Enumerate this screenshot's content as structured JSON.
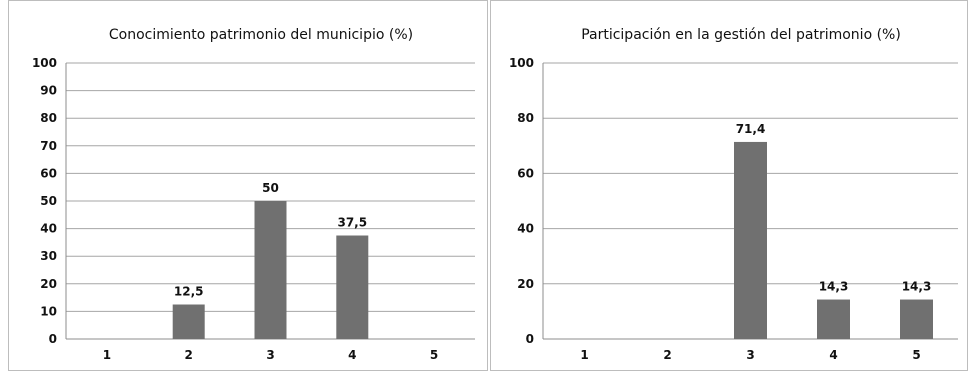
{
  "colors": {
    "bar": "#707070",
    "grid": "#a6a6a6",
    "axis": "#8c8c8c",
    "text": "#111111"
  },
  "chart_data": [
    {
      "type": "bar",
      "title": "Conocimiento patrimonio del municipio (%)",
      "categories": [
        "1",
        "2",
        "3",
        "4",
        "5"
      ],
      "values": [
        0,
        12.5,
        50,
        37.5,
        0
      ],
      "data_labels": [
        "",
        "12,5",
        "50",
        "37,5",
        ""
      ],
      "ylim": [
        0,
        100
      ],
      "yticks": [
        0,
        10,
        20,
        30,
        40,
        50,
        60,
        70,
        80,
        90,
        100
      ],
      "grid": true,
      "legend": "none"
    },
    {
      "type": "bar",
      "title": "Participación en la gestión del patrimonio (%)",
      "categories": [
        "1",
        "2",
        "3",
        "4",
        "5"
      ],
      "values": [
        0,
        0,
        71.4,
        14.3,
        14.3
      ],
      "data_labels": [
        "",
        "",
        "71,4",
        "14,3",
        "14,3"
      ],
      "ylim": [
        0,
        100
      ],
      "yticks": [
        0,
        20,
        40,
        60,
        80,
        100
      ],
      "grid": true,
      "legend": "none"
    }
  ]
}
